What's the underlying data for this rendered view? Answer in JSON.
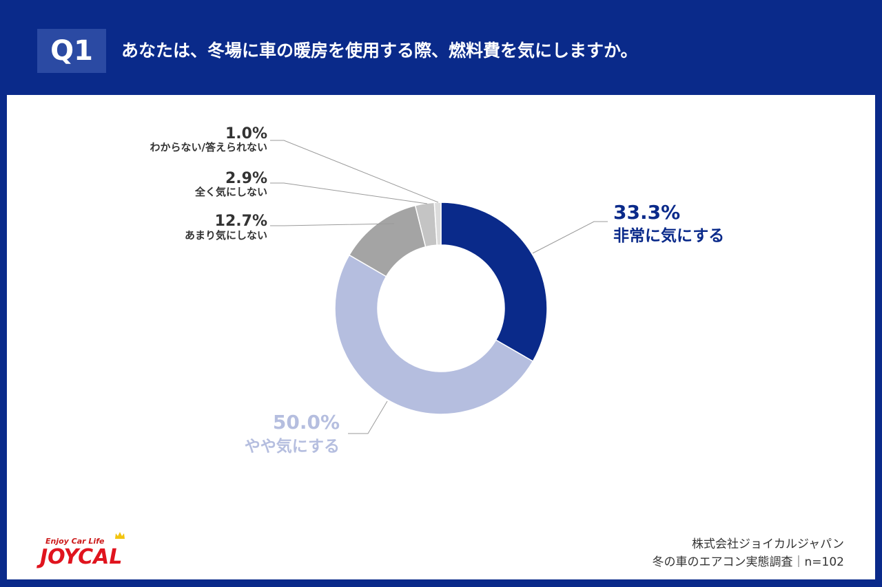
{
  "header": {
    "badge": "Q1",
    "question": "あなたは、冬場に車の暖房を使用する際、燃料費を気にしますか。"
  },
  "colors": {
    "header_bg": "#0a2a8a",
    "badge_bg": "#2b4aa3",
    "slice_very": "#0a2a8a",
    "slice_somewhat": "#b5bedf",
    "slice_not_much": "#a4a4a4",
    "slice_not_at_all": "#c4c4c4",
    "slice_unknown": "#dcdcdc"
  },
  "chart_data": {
    "type": "pie",
    "donut": true,
    "title": "あなたは、冬場に車の暖房を使用する際、燃料費を気にしますか。",
    "categories": [
      "非常に気にする",
      "やや気にする",
      "あまり気にしない",
      "全く気にしない",
      "わからない/答えられない"
    ],
    "values": [
      33.3,
      50.0,
      12.7,
      2.9,
      1.0
    ],
    "value_labels": [
      "33.3%",
      "50.0%",
      "12.7%",
      "2.9%",
      "1.0%"
    ],
    "colors": [
      "#0a2a8a",
      "#b5bedf",
      "#a4a4a4",
      "#c4c4c4",
      "#dcdcdc"
    ],
    "label_colors": [
      "#0a2a8a",
      "#b5bedf",
      "#333333",
      "#333333",
      "#333333"
    ],
    "unit": "%"
  },
  "footer": {
    "logo_tagline": "Enjoy Car Life",
    "logo_name": "JOYCAL",
    "credit_company": "株式会社ジョイカルジャパン",
    "credit_survey": "冬の車のエアコン実態調査｜n=102"
  }
}
